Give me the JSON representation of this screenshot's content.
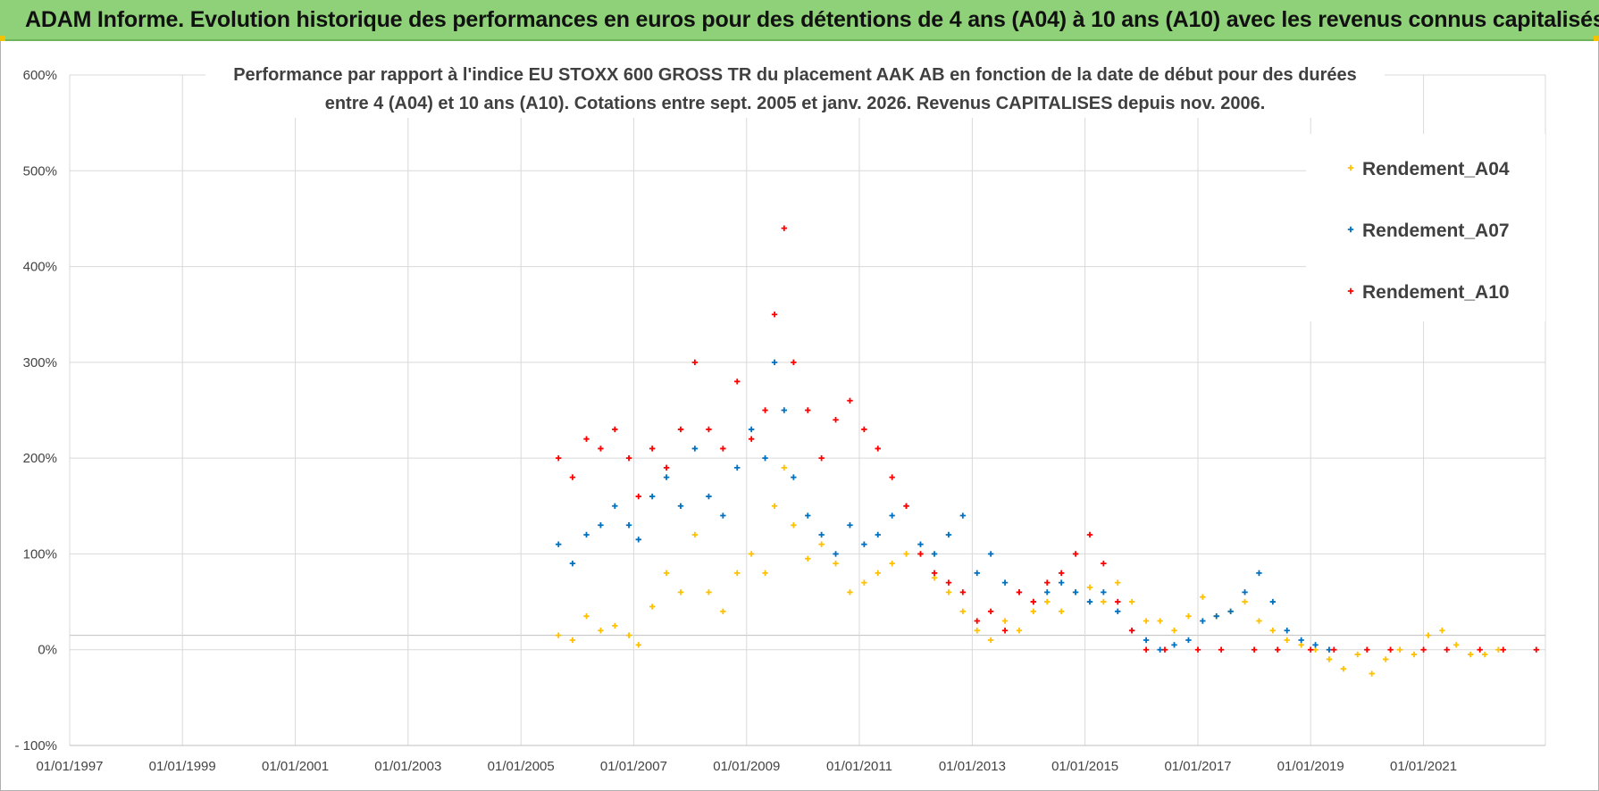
{
  "header": {
    "title": "ADAM Informe. Evolution historique des performances en euros pour des détentions de 4 ans (A04) à 10 ans (A10) avec les revenus connus capitalisés"
  },
  "colors": {
    "header_bg": "#8fd178",
    "A04": "#ffc000",
    "A07": "#0070c0",
    "A10": "#ff0000"
  },
  "chart_data": {
    "type": "scatter",
    "title_lines": [
      "Performance par rapport à l'indice EU STOXX 600 GROSS TR  du placement AAK AB en fonction de la date de début pour des durées",
      "entre 4 (A04) et 10 ans (A10).  Cotations entre sept. 2005 et janv. 2026. Revenus CAPITALISES depuis nov. 2006."
    ],
    "xlabel": "",
    "ylabel": "",
    "x_range": [
      "1997-01-01",
      "2023-03-01"
    ],
    "ylim": [
      -100,
      600
    ],
    "y_ticks": [
      -100,
      0,
      100,
      200,
      300,
      400,
      500,
      600
    ],
    "y_tick_labels": [
      "- 100%",
      "0%",
      "100%",
      "200%",
      "300%",
      "400%",
      "500%",
      "600%"
    ],
    "x_tick_labels": [
      "01/01/1997",
      "01/01/1999",
      "01/01/2001",
      "01/01/2003",
      "01/01/2005",
      "01/01/2007",
      "01/01/2009",
      "01/01/2011",
      "01/01/2013",
      "01/01/2015",
      "01/01/2017",
      "01/01/2019",
      "01/01/2021"
    ],
    "grid": true,
    "legend": "top-right",
    "series": [
      {
        "name": "Rendement_A04",
        "color": "#ffc000",
        "x": [
          "2005-09-01",
          "2005-12-01",
          "2006-03-01",
          "2006-06-01",
          "2006-09-01",
          "2006-12-01",
          "2007-02-01",
          "2007-05-01",
          "2007-08-01",
          "2007-11-01",
          "2008-02-01",
          "2008-05-01",
          "2008-08-01",
          "2008-11-01",
          "2009-02-01",
          "2009-05-01",
          "2009-07-01",
          "2009-09-01",
          "2009-11-01",
          "2010-02-01",
          "2010-05-01",
          "2010-08-01",
          "2010-11-01",
          "2011-02-01",
          "2011-05-01",
          "2011-08-01",
          "2011-11-01",
          "2012-02-01",
          "2012-05-01",
          "2012-08-01",
          "2012-11-01",
          "2013-02-01",
          "2013-05-01",
          "2013-08-01",
          "2013-11-01",
          "2014-02-01",
          "2014-05-01",
          "2014-08-01",
          "2014-11-01",
          "2015-02-01",
          "2015-05-01",
          "2015-08-01",
          "2015-11-01",
          "2016-02-01",
          "2016-05-01",
          "2016-08-01",
          "2016-11-01",
          "2017-02-01",
          "2017-05-01",
          "2017-08-01",
          "2017-11-01",
          "2018-02-01",
          "2018-05-01",
          "2018-08-01",
          "2018-11-01",
          "2019-02-01",
          "2019-05-01",
          "2019-08-01",
          "2019-11-01",
          "2020-02-01",
          "2020-05-01",
          "2020-08-01",
          "2020-11-01",
          "2021-02-01",
          "2021-05-01",
          "2021-08-01",
          "2021-11-01",
          "2022-02-01",
          "2022-05-01"
        ],
        "values": [
          15,
          10,
          35,
          20,
          25,
          15,
          5,
          45,
          80,
          60,
          120,
          60,
          40,
          80,
          100,
          80,
          150,
          190,
          130,
          95,
          110,
          90,
          60,
          70,
          80,
          90,
          100,
          100,
          75,
          60,
          40,
          20,
          10,
          30,
          20,
          40,
          50,
          40,
          60,
          65,
          50,
          70,
          50,
          30,
          30,
          20,
          35,
          55,
          35,
          40,
          50,
          30,
          20,
          10,
          5,
          0,
          -10,
          -20,
          -5,
          -25,
          -10,
          0,
          -5,
          15,
          20,
          5,
          -5,
          -5,
          0
        ]
      },
      {
        "name": "Rendement_A07",
        "color": "#0070c0",
        "x": [
          "2005-09-01",
          "2005-12-01",
          "2006-03-01",
          "2006-06-01",
          "2006-09-01",
          "2006-12-01",
          "2007-02-01",
          "2007-05-01",
          "2007-08-01",
          "2007-11-01",
          "2008-02-01",
          "2008-05-01",
          "2008-08-01",
          "2008-11-01",
          "2009-02-01",
          "2009-05-01",
          "2009-07-01",
          "2009-09-01",
          "2009-11-01",
          "2010-02-01",
          "2010-05-01",
          "2010-08-01",
          "2010-11-01",
          "2011-02-01",
          "2011-05-01",
          "2011-08-01",
          "2011-11-01",
          "2012-02-01",
          "2012-05-01",
          "2012-08-01",
          "2012-11-01",
          "2013-02-01",
          "2013-05-01",
          "2013-08-01",
          "2013-11-01",
          "2014-02-01",
          "2014-05-01",
          "2014-08-01",
          "2014-11-01",
          "2015-02-01",
          "2015-05-01",
          "2015-08-01",
          "2015-11-01",
          "2016-02-01",
          "2016-05-01",
          "2016-08-01",
          "2016-11-01",
          "2017-02-01",
          "2017-05-01",
          "2017-08-01",
          "2017-11-01",
          "2018-02-01",
          "2018-05-01",
          "2018-08-01",
          "2018-11-01",
          "2019-02-01",
          "2019-05-01"
        ],
        "values": [
          110,
          90,
          120,
          130,
          150,
          130,
          115,
          160,
          180,
          150,
          210,
          160,
          140,
          190,
          230,
          200,
          300,
          250,
          180,
          140,
          120,
          100,
          130,
          110,
          120,
          140,
          150,
          110,
          100,
          120,
          140,
          80,
          100,
          70,
          60,
          50,
          60,
          70,
          60,
          50,
          60,
          40,
          20,
          10,
          0,
          5,
          10,
          30,
          35,
          40,
          60,
          80,
          50,
          20,
          10,
          5,
          0
        ]
      },
      {
        "name": "Rendement_A10",
        "color": "#ff0000",
        "x": [
          "2005-09-01",
          "2005-12-01",
          "2006-03-01",
          "2006-06-01",
          "2006-09-01",
          "2006-12-01",
          "2007-02-01",
          "2007-05-01",
          "2007-08-01",
          "2007-11-01",
          "2008-02-01",
          "2008-05-01",
          "2008-08-01",
          "2008-11-01",
          "2009-02-01",
          "2009-05-01",
          "2009-07-01",
          "2009-09-01",
          "2009-11-01",
          "2010-02-01",
          "2010-05-01",
          "2010-08-01",
          "2010-11-01",
          "2011-02-01",
          "2011-05-01",
          "2011-08-01",
          "2011-11-01",
          "2012-02-01",
          "2012-05-01",
          "2012-08-01",
          "2012-11-01",
          "2013-02-01",
          "2013-05-01",
          "2013-08-01",
          "2013-11-01",
          "2014-02-01",
          "2014-05-01",
          "2014-08-01",
          "2014-11-01",
          "2015-02-01",
          "2015-05-01",
          "2015-08-01",
          "2015-11-01",
          "2016-02-01",
          "2016-06-01",
          "2017-01-01",
          "2017-06-01",
          "2018-01-01",
          "2018-06-01",
          "2019-01-01",
          "2019-06-01",
          "2020-01-01",
          "2020-06-01",
          "2021-01-01",
          "2021-06-01",
          "2022-01-01",
          "2022-06-01",
          "2023-01-01"
        ],
        "values": [
          200,
          180,
          220,
          210,
          230,
          200,
          160,
          210,
          190,
          230,
          300,
          230,
          210,
          280,
          220,
          250,
          350,
          440,
          300,
          250,
          200,
          240,
          260,
          230,
          210,
          180,
          150,
          100,
          80,
          70,
          60,
          30,
          40,
          20,
          60,
          50,
          70,
          80,
          100,
          120,
          90,
          50,
          20,
          0,
          0,
          0,
          0,
          0,
          0,
          0,
          0,
          0,
          0,
          0,
          0,
          0,
          0,
          0
        ]
      }
    ]
  }
}
